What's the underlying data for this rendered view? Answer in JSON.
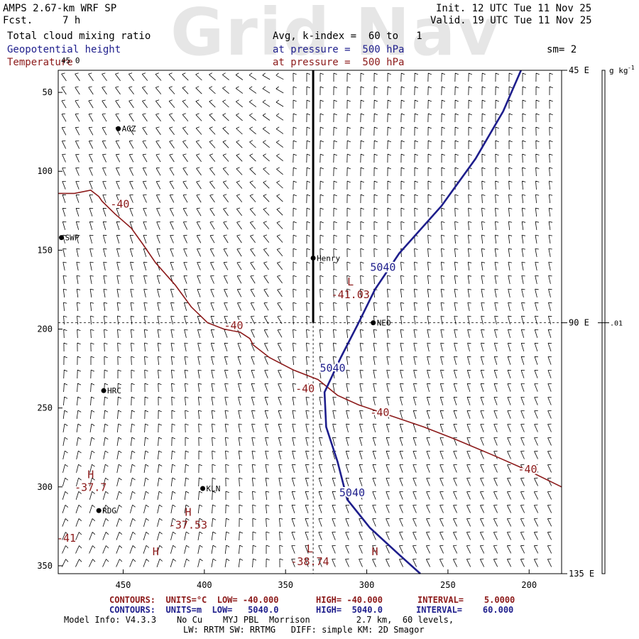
{
  "watermark": "Grid Nav",
  "header": {
    "model": "AMPS 2.67-km WRF SP",
    "fcst_label": "Fcst.",
    "fcst_value": "7 h",
    "init": "Init. 12 UTC Tue 11 Nov 25",
    "valid": "Valid. 19 UTC Tue 11 Nov 25",
    "field1": "Total cloud mixing ratio",
    "field1_info": "Avg, k-index =  60 to   1",
    "field2": "Geopotential height",
    "field2_info": "at pressure =  500 hPa",
    "field3": "Temperature",
    "field3_info": "at pressure =  500 hPa",
    "sm": "sm= 2"
  },
  "colors": {
    "height": "#1e1e8c",
    "temperature": "#8c1a1a",
    "wind": "#000000",
    "watermark": "#e6e6e6"
  },
  "chart_data": {
    "type": "contour-map",
    "x_ticks": [
      450,
      400,
      350,
      300,
      250,
      200
    ],
    "y_ticks": [
      50,
      100,
      150,
      200,
      250,
      300,
      350
    ],
    "xlim": [
      490,
      180
    ],
    "ylim": [
      36,
      355
    ],
    "corner_label": "45 0",
    "right_lon_labels": [
      {
        "y": 36,
        "label": "45 E"
      },
      {
        "y": 196,
        "label": "90 E"
      },
      {
        "y": 355,
        "label": "135 E"
      }
    ],
    "colorbar": {
      "unit": "g kg",
      "unit_exp": "-1",
      "label": ".01",
      "y": 196
    },
    "grid_cross": {
      "x": 333,
      "y": 196
    },
    "stations": [
      {
        "name": "AGZ",
        "x": 453,
        "y": 73
      },
      {
        "name": "SWP",
        "x": 488,
        "y": 142
      },
      {
        "name": "Henry",
        "x": 333,
        "y": 155
      },
      {
        "name": "NEO",
        "x": 296,
        "y": 196
      },
      {
        "name": "HRC",
        "x": 462,
        "y": 239
      },
      {
        "name": "KLN",
        "x": 401,
        "y": 301
      },
      {
        "name": "RDG",
        "x": 465,
        "y": 315
      }
    ],
    "height_contour": {
      "value": 5040,
      "points": [
        [
          205,
          36
        ],
        [
          216,
          62
        ],
        [
          233,
          92
        ],
        [
          254,
          122
        ],
        [
          280,
          152
        ],
        [
          295,
          175
        ],
        [
          305,
          196
        ],
        [
          316,
          218
        ],
        [
          326,
          240
        ],
        [
          325,
          262
        ],
        [
          318,
          284
        ],
        [
          312,
          308
        ],
        [
          298,
          326
        ],
        [
          280,
          343
        ],
        [
          267,
          355
        ]
      ],
      "labels": [
        {
          "text": "5040",
          "x": 290,
          "y": 161
        },
        {
          "text": "5040",
          "x": 321,
          "y": 225
        },
        {
          "text": "5040",
          "x": 309,
          "y": 304
        }
      ]
    },
    "temperature_contour": {
      "value": -40,
      "segments": [
        [
          [
            490,
            114
          ],
          [
            480,
            114
          ],
          [
            470,
            112
          ],
          [
            465,
            116
          ],
          [
            463,
            119
          ],
          [
            455,
            127
          ],
          [
            445,
            136
          ],
          [
            438,
            146
          ],
          [
            430,
            158
          ],
          [
            418,
            172
          ],
          [
            408,
            186
          ],
          [
            398,
            196
          ],
          [
            388,
            200
          ],
          [
            378,
            202
          ],
          [
            372,
            206
          ],
          [
            370,
            210
          ],
          [
            360,
            218
          ],
          [
            345,
            226
          ],
          [
            330,
            232
          ],
          [
            318,
            242
          ],
          [
            305,
            248
          ],
          [
            285,
            255
          ],
          [
            265,
            262
          ],
          [
            245,
            270
          ],
          [
            222,
            280
          ],
          [
            200,
            290
          ],
          [
            180,
            300
          ]
        ]
      ],
      "labels": [
        {
          "text": "-40",
          "x": 452,
          "y": 121
        },
        {
          "text": "-40",
          "x": 382,
          "y": 198
        },
        {
          "text": "-40",
          "x": 338,
          "y": 238
        },
        {
          "text": "-40",
          "x": 292,
          "y": 253
        },
        {
          "text": "-40",
          "x": 201,
          "y": 289
        }
      ]
    },
    "extrema": [
      {
        "kind": "L",
        "value": "-41.03",
        "x": 310,
        "y": 176
      },
      {
        "kind": "H",
        "value": "-37.7",
        "x": 470,
        "y": 298
      },
      {
        "kind": "H",
        "value": "-37.53",
        "x": 410,
        "y": 322
      },
      {
        "kind": "L",
        "value": "-38.74",
        "x": 335,
        "y": 345
      },
      {
        "kind": "H",
        "value": "",
        "x": 430,
        "y": 347
      },
      {
        "kind": "H",
        "value": "",
        "x": 295,
        "y": 347
      }
    ],
    "edge_value": {
      "text": "-41",
      "x": 490,
      "y": 333
    }
  },
  "footer": {
    "temp_contours": "CONTOURS:  UNITS=°C  LOW= -40.000",
    "temp_high": "HIGH= -40.000",
    "temp_interval": "INTERVAL=    5.0000",
    "hgt_contours": "CONTOURS:  UNITS=m  LOW=   5040.0",
    "hgt_high": "HIGH=  5040.0",
    "hgt_interval": "INTERVAL=    60.000",
    "model_info": "Model Info: V4.3.3    No Cu    MYJ PBL  Morrison         2.7 km,  60 levels,",
    "model_info2": "LW: RRTM SW: RRTMG   DIFF: simple KM: 2D Smagor"
  }
}
